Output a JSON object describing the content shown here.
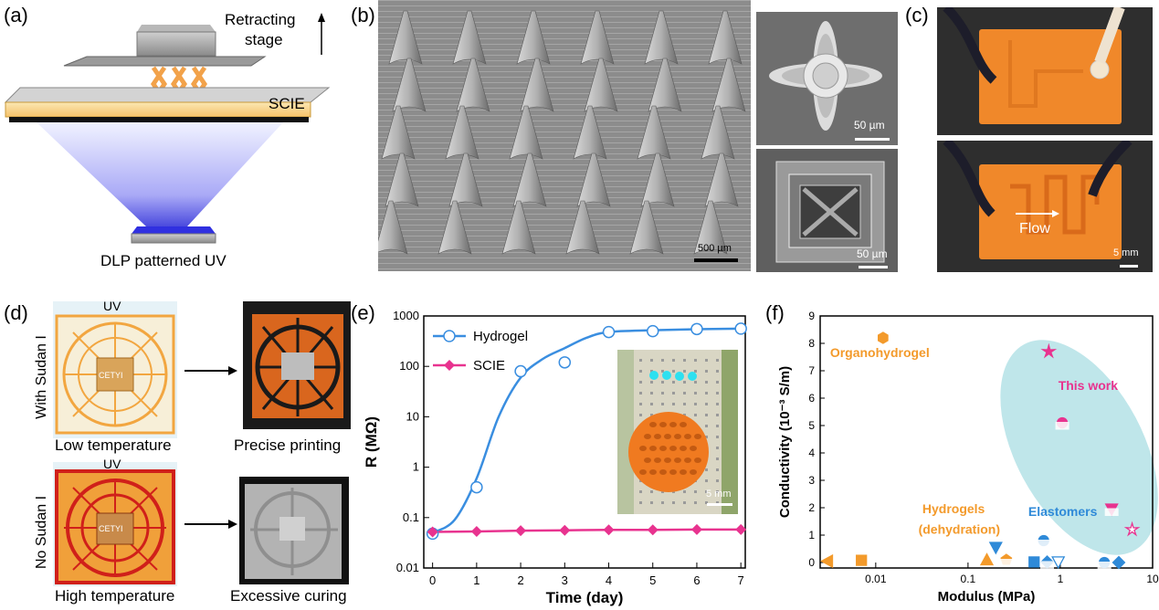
{
  "panels": {
    "a": {
      "label": "(a)",
      "stage_label_1": "Retracting",
      "stage_label_2": "stage",
      "resin_label": "SCIE",
      "uv_label": "DLP patterned UV"
    },
    "b": {
      "label": "(b)",
      "scale_main": "500 µm",
      "scale_top": "50 µm",
      "scale_bottom": "50 µm"
    },
    "c": {
      "label": "(c)",
      "flow_label": "Flow",
      "scale": "5 mm"
    },
    "d": {
      "label": "(d)",
      "uv_top": "UV",
      "uv_bottom": "UV",
      "row_top": "With Sudan I",
      "row_bottom": "No Sudan I",
      "caption_top_left": "Low temperature",
      "caption_top_right": "Precise printing",
      "caption_bottom_left": "High temperature",
      "caption_bottom_right": "Excessive curing",
      "seal_text": "CETYI"
    },
    "e": {
      "label": "(e)",
      "inset_scale": "5 mm"
    },
    "f": {
      "label": "(f)",
      "annotations": {
        "organo": "Organohydrogel",
        "this_work": "This work",
        "hydrogels_1": "Hydrogels",
        "hydrogels_2": "(dehydration)",
        "elastomers": "Elastomers"
      }
    }
  },
  "colors": {
    "hydrogel": "#3a8ee0",
    "scie": "#e8338f",
    "orange": "#f39a2b",
    "blue_pts": "#2f8ad8",
    "teal_ellipse": "#bfe6ea",
    "uv_blue": "#3a3ad8"
  },
  "chart_data": [
    {
      "type": "line",
      "xlabel": "Time (day)",
      "ylabel": "R (MΩ)",
      "yscale": "log",
      "xlim": [
        -0.2,
        7.1
      ],
      "ylim": [
        0.01,
        1000
      ],
      "xticks": [
        0,
        1,
        2,
        3,
        4,
        5,
        6,
        7
      ],
      "yticks": [
        "0.01",
        "0.1",
        "1",
        "10",
        "100",
        "1000"
      ],
      "legend": "top-left",
      "series": [
        {
          "name": "Hydrogel",
          "marker": "open-circle",
          "x": [
            0,
            1,
            2,
            3,
            4,
            5,
            6,
            7
          ],
          "y": [
            0.048,
            0.4,
            80,
            120,
            480,
            500,
            550,
            560
          ],
          "fit": [
            [
              0,
              0.05
            ],
            [
              0.5,
              0.09
            ],
            [
              1,
              0.6
            ],
            [
              1.5,
              10
            ],
            [
              2,
              60
            ],
            [
              2.5,
              140
            ],
            [
              3,
              230
            ],
            [
              3.5,
              370
            ],
            [
              4,
              480
            ],
            [
              5,
              520
            ],
            [
              6,
              545
            ],
            [
              7,
              560
            ]
          ]
        },
        {
          "name": "SCIE",
          "marker": "filled-diamond",
          "x": [
            0,
            1,
            2,
            3,
            4,
            5,
            6,
            7
          ],
          "y": [
            0.052,
            0.053,
            0.055,
            0.056,
            0.057,
            0.057,
            0.058,
            0.058
          ]
        }
      ]
    },
    {
      "type": "scatter",
      "xlabel": "Modulus (MPa)",
      "ylabel": "Conductivity (10⁻³ S/m)",
      "xscale": "log",
      "xlim": [
        0.0025,
        10
      ],
      "ylim": [
        -0.2,
        9
      ],
      "xticks": [
        "0.01",
        "0.1",
        "1",
        "10"
      ],
      "yticks": [
        "0",
        "1",
        "2",
        "3",
        "4",
        "5",
        "6",
        "7",
        "8",
        "9"
      ],
      "points": [
        {
          "group": "Organohydrogel",
          "x": 0.012,
          "y": 8.2,
          "shape": "hexagon",
          "color": "#f39a2b"
        },
        {
          "group": "This work",
          "x": 0.75,
          "y": 7.7,
          "shape": "star",
          "color": "#e8338f"
        },
        {
          "group": "This work",
          "x": 1.05,
          "y": 5.1,
          "shape": "circle-half",
          "color": "#e8338f"
        },
        {
          "group": "This work",
          "x": 3.6,
          "y": 1.95,
          "shape": "triangle-down-half",
          "color": "#e8338f"
        },
        {
          "group": "This work",
          "x": 6.0,
          "y": 1.2,
          "shape": "star-open",
          "color": "#e8338f"
        },
        {
          "group": "Hydrogels",
          "x": 0.003,
          "y": 0.05,
          "shape": "triangle-left",
          "color": "#f39a2b"
        },
        {
          "group": "Hydrogels",
          "x": 0.007,
          "y": 0.08,
          "shape": "square",
          "color": "#f39a2b"
        },
        {
          "group": "Hydrogels",
          "x": 0.16,
          "y": 0.1,
          "shape": "triangle-up",
          "color": "#f39a2b"
        },
        {
          "group": "Hydrogels",
          "x": 0.26,
          "y": 0.1,
          "shape": "pentagon-half",
          "color": "#f39a2b"
        },
        {
          "group": "Elastomers",
          "x": 0.2,
          "y": 0.55,
          "shape": "triangle-down",
          "color": "#2f8ad8"
        },
        {
          "group": "Elastomers",
          "x": 0.66,
          "y": 0.8,
          "shape": "circle-half",
          "color": "#2f8ad8"
        },
        {
          "group": "Elastomers",
          "x": 0.52,
          "y": 0.02,
          "shape": "square",
          "color": "#2f8ad8"
        },
        {
          "group": "Elastomers",
          "x": 0.72,
          "y": 0.02,
          "shape": "diamond-half",
          "color": "#2f8ad8"
        },
        {
          "group": "Elastomers",
          "x": 0.95,
          "y": 0.02,
          "shape": "triangle-down-open",
          "color": "#2f8ad8"
        },
        {
          "group": "Elastomers",
          "x": 3.0,
          "y": 0.0,
          "shape": "circle-half",
          "color": "#2f8ad8"
        },
        {
          "group": "Elastomers",
          "x": 4.3,
          "y": 0.0,
          "shape": "diamond",
          "color": "#2f8ad8"
        }
      ]
    }
  ]
}
